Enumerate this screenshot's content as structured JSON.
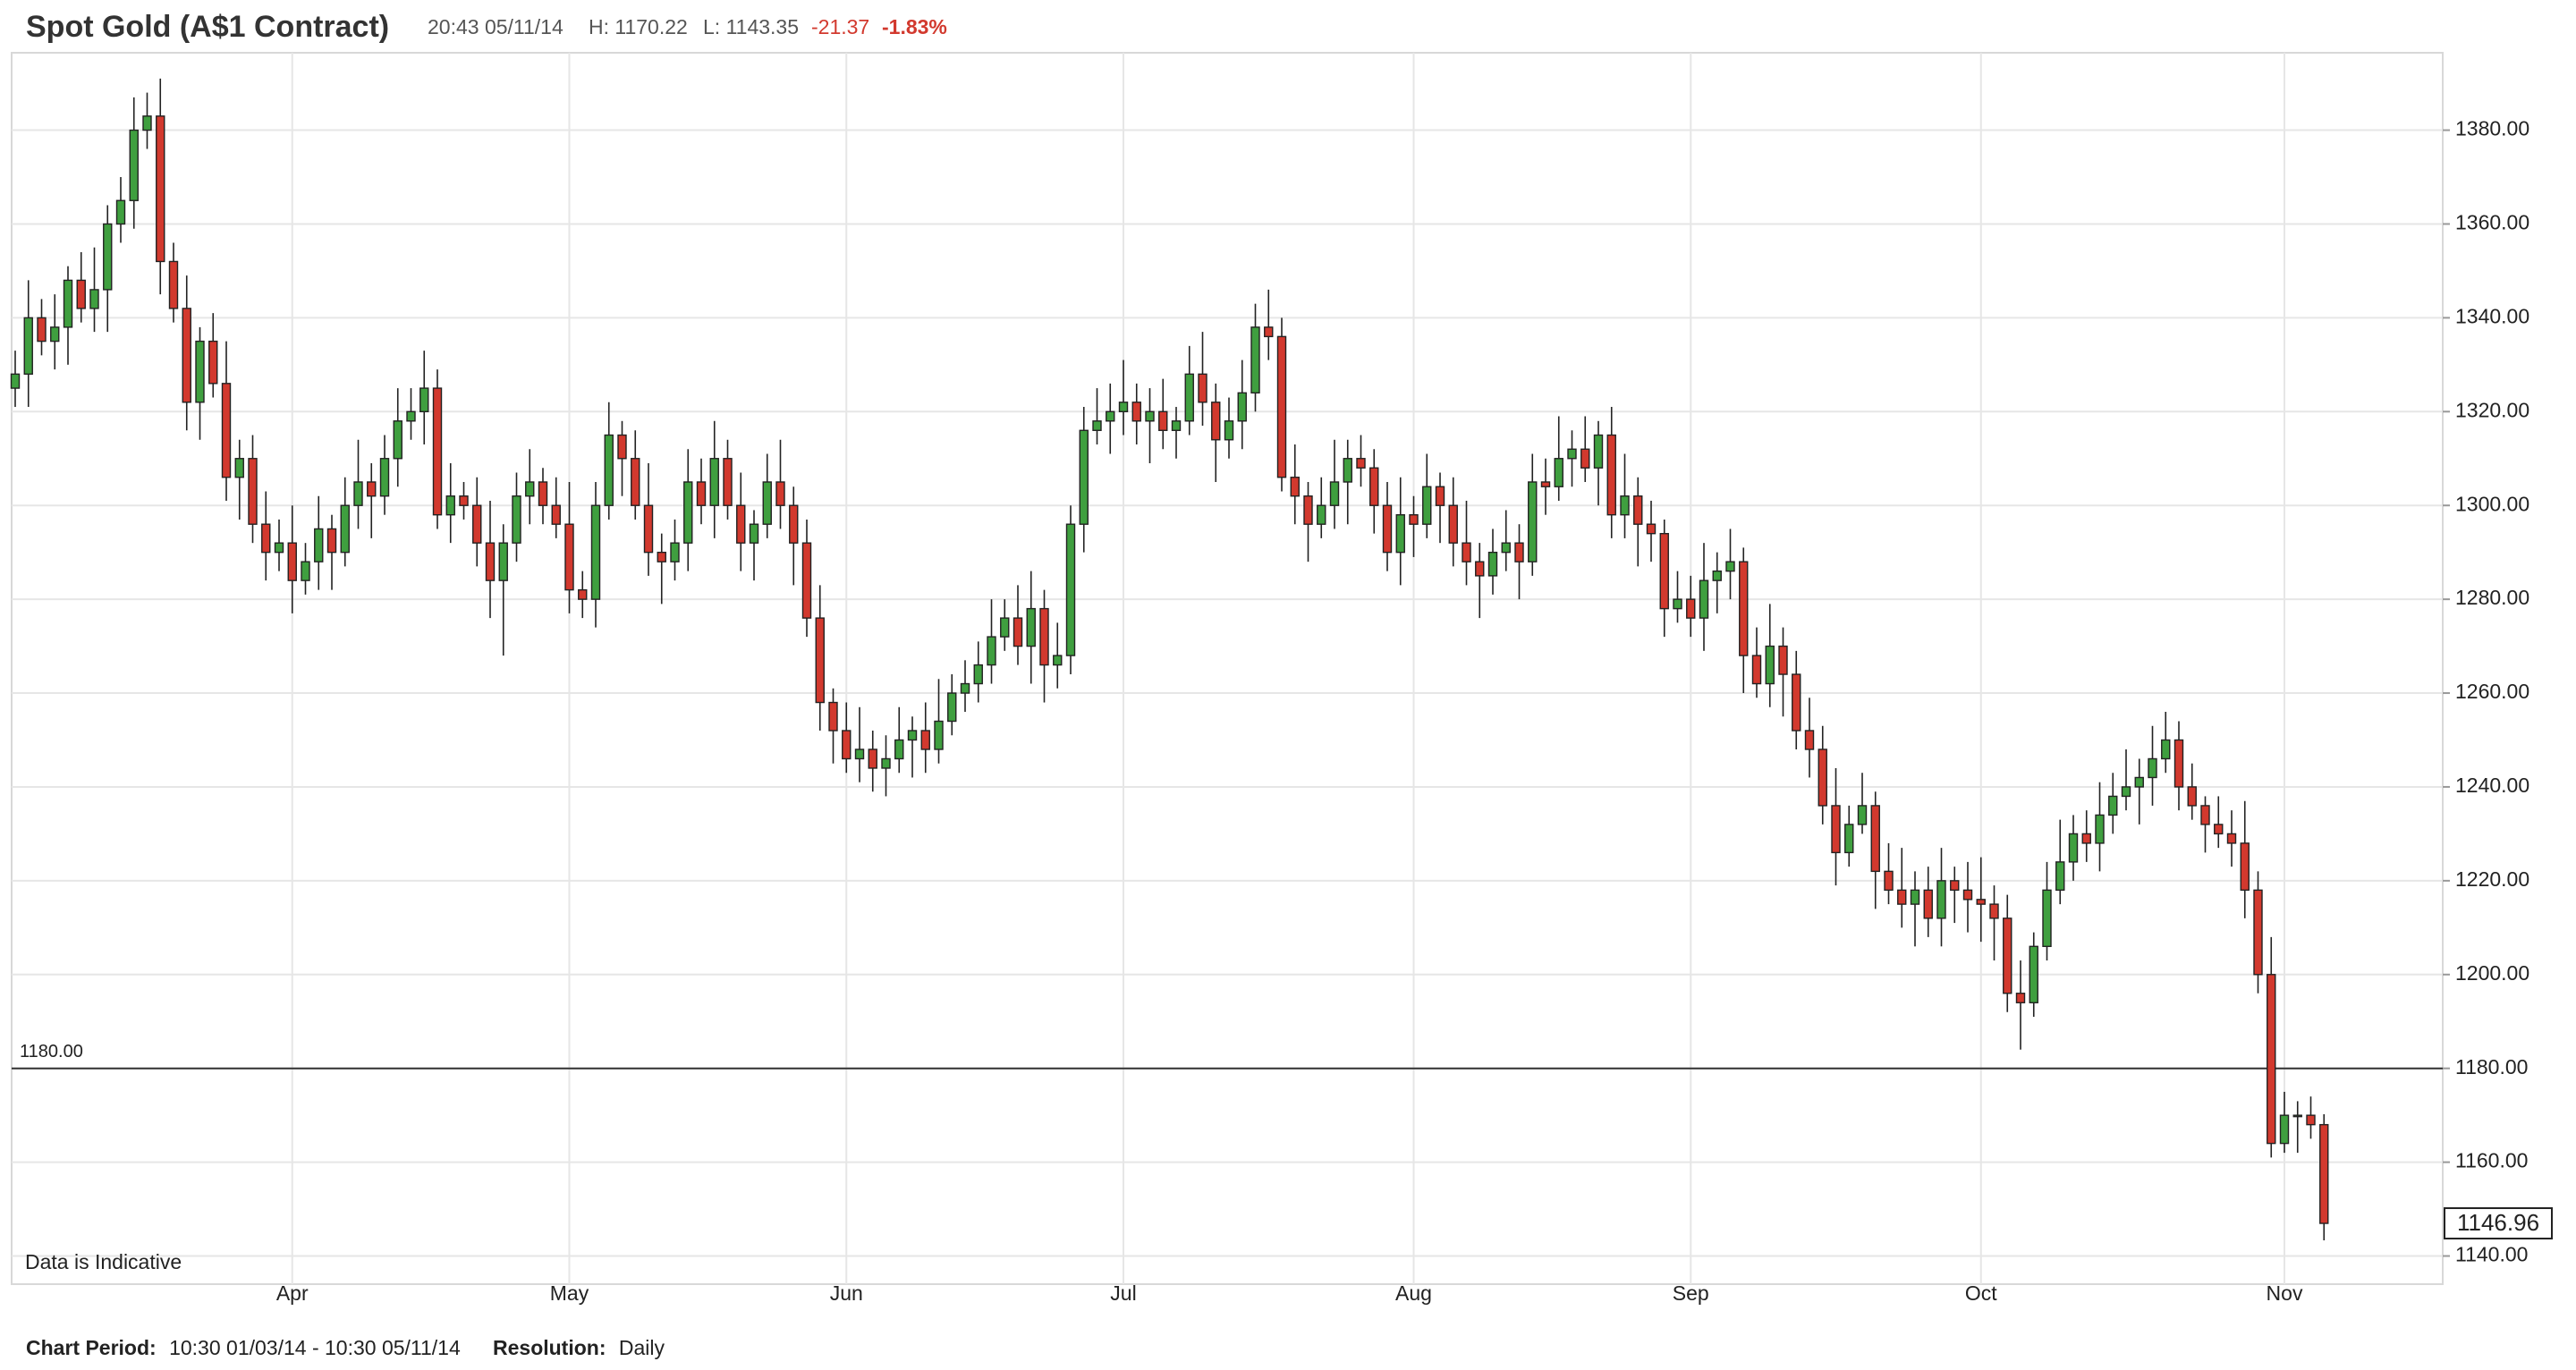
{
  "chart_data": {
    "type": "candlestick",
    "title": "Spot Gold (A$1 Contract)",
    "header": {
      "time": "20:43 05/11/14",
      "high": "H: 1170.22",
      "low": "L: 1143.35",
      "change": "-21.37",
      "change_percent": "-1.83%"
    },
    "annotation": "Data is Indicative",
    "footer": {
      "period_label": "Chart Period:",
      "period": "10:30 01/03/14 - 10:30 05/11/14",
      "resolution_label": "Resolution:",
      "resolution": "Daily"
    },
    "up_color": "#3f9f3f",
    "down_color": "#d2392e",
    "ylim": [
      1134,
      1396.5
    ],
    "yticks": [
      {
        "value": 1140,
        "label": "1140.00"
      },
      {
        "value": 1160,
        "label": "1160.00"
      },
      {
        "value": 1180,
        "label": "1180.00"
      },
      {
        "value": 1200,
        "label": "1200.00"
      },
      {
        "value": 1220,
        "label": "1220.00"
      },
      {
        "value": 1240,
        "label": "1240.00"
      },
      {
        "value": 1260,
        "label": "1260.00"
      },
      {
        "value": 1280,
        "label": "1280.00"
      },
      {
        "value": 1300,
        "label": "1300.00"
      },
      {
        "value": 1320,
        "label": "1320.00"
      },
      {
        "value": 1340,
        "label": "1340.00"
      },
      {
        "value": 1360,
        "label": "1360.00"
      },
      {
        "value": 1380,
        "label": "1380.00"
      }
    ],
    "grid": true,
    "reference_line": {
      "value": 1180,
      "label": "1180.00"
    },
    "last_value": {
      "value": 1146.96,
      "label": "1146.96"
    },
    "categories": [
      null,
      null,
      null,
      null,
      null,
      null,
      null,
      null,
      null,
      null,
      null,
      null,
      null,
      null,
      null,
      null,
      null,
      null,
      null,
      null,
      null,
      "Apr",
      null,
      null,
      null,
      null,
      null,
      null,
      null,
      null,
      null,
      null,
      null,
      null,
      null,
      null,
      null,
      null,
      null,
      null,
      null,
      null,
      "May",
      null,
      null,
      null,
      null,
      null,
      null,
      null,
      null,
      null,
      null,
      null,
      null,
      null,
      null,
      null,
      null,
      null,
      null,
      null,
      null,
      "Jun",
      null,
      null,
      null,
      null,
      null,
      null,
      null,
      null,
      null,
      null,
      null,
      null,
      null,
      null,
      null,
      null,
      null,
      null,
      null,
      null,
      "Jul",
      null,
      null,
      null,
      null,
      null,
      null,
      null,
      null,
      null,
      null,
      null,
      null,
      null,
      null,
      null,
      null,
      null,
      null,
      null,
      null,
      null,
      "Aug",
      null,
      null,
      null,
      null,
      null,
      null,
      null,
      null,
      null,
      null,
      null,
      null,
      null,
      null,
      null,
      null,
      null,
      null,
      null,
      null,
      "Sep",
      null,
      null,
      null,
      null,
      null,
      null,
      null,
      null,
      null,
      null,
      null,
      null,
      null,
      null,
      null,
      null,
      null,
      null,
      null,
      null,
      null,
      "Oct",
      null,
      null,
      null,
      null,
      null,
      null,
      null,
      null,
      null,
      null,
      null,
      null,
      null,
      null,
      null,
      null,
      null,
      null,
      null,
      null,
      null,
      null,
      "Nov",
      null,
      null,
      null
    ],
    "open": [
      1325,
      1328,
      1340,
      1335,
      1338,
      1348,
      1342,
      1346,
      1360,
      1365,
      1380,
      1383,
      1352,
      1342,
      1322,
      1335,
      1326,
      1306,
      1310,
      1296,
      1290,
      1292,
      1284,
      1288,
      1295,
      1290,
      1300,
      1305,
      1302,
      1310,
      1318,
      1320,
      1325,
      1298,
      1302,
      1300,
      1292,
      1284,
      1292,
      1302,
      1305,
      1300,
      1296,
      1282,
      1280,
      1300,
      1315,
      1310,
      1300,
      1290,
      1288,
      1292,
      1305,
      1300,
      1310,
      1300,
      1292,
      1296,
      1305,
      1300,
      1292,
      1276,
      1258,
      1252,
      1246,
      1248,
      1244,
      1246,
      1250,
      1252,
      1248,
      1254,
      1260,
      1262,
      1266,
      1272,
      1276,
      1270,
      1278,
      1266,
      1268,
      1296,
      1316,
      1318,
      1320,
      1322,
      1318,
      1320,
      1316,
      1318,
      1328,
      1322,
      1314,
      1318,
      1324,
      1338,
      1336,
      1306,
      1302,
      1296,
      1300,
      1305,
      1310,
      1308,
      1300,
      1290,
      1298,
      1296,
      1304,
      1300,
      1292,
      1288,
      1285,
      1290,
      1292,
      1288,
      1305,
      1304,
      1310,
      1312,
      1308,
      1315,
      1298,
      1302,
      1296,
      1294,
      1278,
      1280,
      1276,
      1284,
      1286,
      1288,
      1268,
      1262,
      1270,
      1264,
      1252,
      1248,
      1236,
      1226,
      1232,
      1236,
      1222,
      1218,
      1215,
      1218,
      1212,
      1220,
      1218,
      1216,
      1215,
      1212,
      1196,
      1194,
      1206,
      1218,
      1224,
      1230,
      1228,
      1234,
      1238,
      1240,
      1242,
      1246,
      1250,
      1240,
      1236,
      1232,
      1230,
      1228,
      1218,
      1200,
      1164,
      1170,
      1170,
      1168
    ],
    "high": [
      1333,
      1348,
      1344,
      1345,
      1351,
      1354,
      1355,
      1364,
      1370,
      1387,
      1388,
      1391,
      1356,
      1349,
      1338,
      1341,
      1335,
      1314,
      1315,
      1303,
      1297,
      1300,
      1292,
      1302,
      1298,
      1306,
      1314,
      1309,
      1315,
      1325,
      1325,
      1333,
      1329,
      1309,
      1305,
      1306,
      1301,
      1296,
      1307,
      1312,
      1308,
      1306,
      1305,
      1286,
      1305,
      1322,
      1318,
      1316,
      1309,
      1294,
      1297,
      1312,
      1310,
      1318,
      1314,
      1307,
      1299,
      1311,
      1314,
      1304,
      1297,
      1283,
      1261,
      1258,
      1257,
      1252,
      1251,
      1257,
      1255,
      1258,
      1263,
      1264,
      1267,
      1271,
      1280,
      1280,
      1283,
      1286,
      1282,
      1275,
      1300,
      1321,
      1325,
      1326,
      1331,
      1326,
      1325,
      1327,
      1321,
      1334,
      1337,
      1326,
      1323,
      1331,
      1343,
      1346,
      1340,
      1313,
      1305,
      1306,
      1314,
      1314,
      1315,
      1312,
      1305,
      1306,
      1302,
      1311,
      1307,
      1306,
      1301,
      1292,
      1295,
      1299,
      1296,
      1311,
      1310,
      1319,
      1316,
      1319,
      1318,
      1321,
      1311,
      1306,
      1301,
      1297,
      1286,
      1285,
      1292,
      1290,
      1295,
      1291,
      1274,
      1279,
      1274,
      1269,
      1259,
      1253,
      1244,
      1236,
      1243,
      1239,
      1228,
      1227,
      1222,
      1223,
      1227,
      1223,
      1224,
      1225,
      1219,
      1217,
      1203,
      1209,
      1224,
      1233,
      1234,
      1235,
      1241,
      1243,
      1248,
      1246,
      1253,
      1256,
      1254,
      1245,
      1238,
      1238,
      1235,
      1237,
      1222,
      1208,
      1175,
      1173,
      1174,
      1170.22
    ],
    "low": [
      1321,
      1321,
      1332,
      1329,
      1330,
      1339,
      1337,
      1337,
      1356,
      1359,
      1376,
      1345,
      1339,
      1316,
      1314,
      1323,
      1301,
      1297,
      1292,
      1284,
      1286,
      1277,
      1281,
      1282,
      1282,
      1287,
      1295,
      1293,
      1298,
      1304,
      1314,
      1313,
      1295,
      1292,
      1297,
      1287,
      1276,
      1268,
      1288,
      1296,
      1296,
      1293,
      1277,
      1276,
      1274,
      1297,
      1302,
      1297,
      1285,
      1279,
      1284,
      1286,
      1296,
      1293,
      1297,
      1286,
      1284,
      1293,
      1295,
      1283,
      1272,
      1252,
      1245,
      1243,
      1241,
      1239,
      1238,
      1243,
      1242,
      1243,
      1245,
      1251,
      1256,
      1258,
      1262,
      1269,
      1266,
      1262,
      1258,
      1261,
      1264,
      1290,
      1313,
      1311,
      1315,
      1313,
      1309,
      1312,
      1310,
      1315,
      1317,
      1305,
      1310,
      1312,
      1320,
      1331,
      1303,
      1296,
      1288,
      1293,
      1295,
      1296,
      1304,
      1294,
      1286,
      1283,
      1289,
      1293,
      1292,
      1287,
      1283,
      1276,
      1281,
      1286,
      1280,
      1285,
      1298,
      1301,
      1304,
      1305,
      1300,
      1293,
      1293,
      1287,
      1288,
      1272,
      1275,
      1272,
      1269,
      1277,
      1280,
      1260,
      1259,
      1257,
      1255,
      1248,
      1242,
      1232,
      1219,
      1223,
      1230,
      1214,
      1215,
      1210,
      1206,
      1208,
      1206,
      1211,
      1209,
      1207,
      1203,
      1192,
      1184,
      1191,
      1203,
      1215,
      1220,
      1224,
      1222,
      1230,
      1235,
      1232,
      1236,
      1243,
      1235,
      1233,
      1226,
      1227,
      1223,
      1212,
      1196,
      1161,
      1162,
      1162,
      1165,
      1143.35
    ],
    "close": [
      1328,
      1340,
      1335,
      1338,
      1348,
      1342,
      1346,
      1360,
      1365,
      1380,
      1383,
      1352,
      1342,
      1322,
      1335,
      1326,
      1306,
      1310,
      1296,
      1290,
      1292,
      1284,
      1288,
      1295,
      1290,
      1300,
      1305,
      1302,
      1310,
      1318,
      1320,
      1325,
      1298,
      1302,
      1300,
      1292,
      1284,
      1292,
      1302,
      1305,
      1300,
      1296,
      1282,
      1280,
      1300,
      1315,
      1310,
      1300,
      1290,
      1288,
      1292,
      1305,
      1300,
      1310,
      1300,
      1292,
      1296,
      1305,
      1300,
      1292,
      1276,
      1258,
      1252,
      1246,
      1248,
      1244,
      1246,
      1250,
      1252,
      1248,
      1254,
      1260,
      1262,
      1266,
      1272,
      1276,
      1270,
      1278,
      1266,
      1268,
      1296,
      1316,
      1318,
      1320,
      1322,
      1318,
      1320,
      1316,
      1318,
      1328,
      1322,
      1314,
      1318,
      1324,
      1338,
      1336,
      1306,
      1302,
      1296,
      1300,
      1305,
      1310,
      1308,
      1300,
      1290,
      1298,
      1296,
      1304,
      1300,
      1292,
      1288,
      1285,
      1290,
      1292,
      1288,
      1305,
      1304,
      1310,
      1312,
      1308,
      1315,
      1298,
      1302,
      1296,
      1294,
      1278,
      1280,
      1276,
      1284,
      1286,
      1288,
      1268,
      1262,
      1270,
      1264,
      1252,
      1248,
      1236,
      1226,
      1232,
      1236,
      1222,
      1218,
      1215,
      1218,
      1212,
      1220,
      1218,
      1216,
      1215,
      1212,
      1196,
      1194,
      1206,
      1218,
      1224,
      1230,
      1228,
      1234,
      1238,
      1240,
      1242,
      1246,
      1250,
      1240,
      1236,
      1232,
      1230,
      1228,
      1218,
      1200,
      1164,
      1170,
      1170,
      1168,
      1146.96
    ]
  }
}
